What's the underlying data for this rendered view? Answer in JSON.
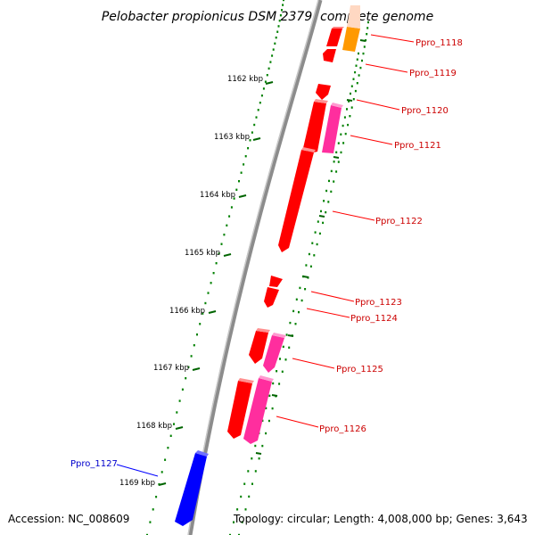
{
  "title": "Pelobacter propionicus DSM 2379, complete genome",
  "accession": "Accession: NC_008609",
  "summary": "Topology: circular; Length: 4,008,000 bp; Genes: 3,643",
  "colors": {
    "backbone": "#9a9a9a",
    "backbone_highlight": "#333333",
    "tick_dots": "#008000",
    "gene_red": "#ff0000",
    "gene_pink": "#ff2e9e",
    "gene_orange": "#ff9900",
    "gene_peach": "#ffd8c2",
    "gene_blue": "#0000ff",
    "label_red": "#cc0000",
    "label_blue": "#0000cc"
  },
  "kbp_ticks": [
    "1162 kbp",
    "1163 kbp",
    "1164 kbp",
    "1165 kbp",
    "1166 kbp",
    "1167 kbp",
    "1168 kbp",
    "1169 kbp"
  ],
  "genes": [
    {
      "label": "Ppro_1118",
      "color": "label_red"
    },
    {
      "label": "Ppro_1119",
      "color": "label_red"
    },
    {
      "label": "Ppro_1120",
      "color": "label_red"
    },
    {
      "label": "Ppro_1121",
      "color": "label_red"
    },
    {
      "label": "Ppro_1122",
      "color": "label_red"
    },
    {
      "label": "Ppro_1123",
      "color": "label_red"
    },
    {
      "label": "Ppro_1124",
      "color": "label_red"
    },
    {
      "label": "Ppro_1125",
      "color": "label_red"
    },
    {
      "label": "Ppro_1126",
      "color": "label_red"
    },
    {
      "label": "Ppro_1127",
      "color": "label_blue"
    }
  ]
}
